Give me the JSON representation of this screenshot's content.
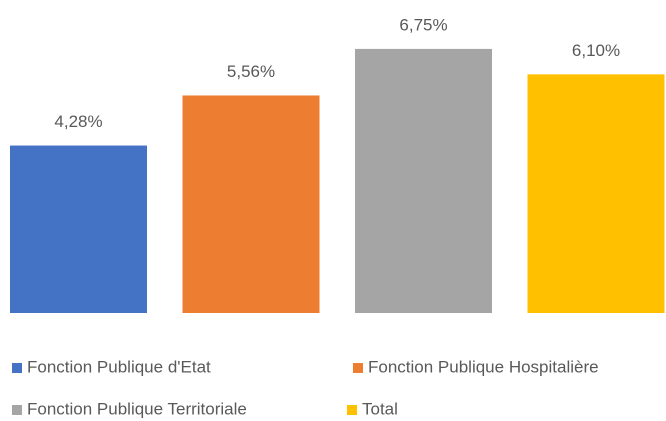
{
  "chart_data": {
    "type": "bar",
    "series": [
      {
        "name": "Fonction Publique d'Etat",
        "color": "#4472c4",
        "values": [
          4.28
        ],
        "value_labels": [
          "4,28%"
        ]
      },
      {
        "name": "Fonction Publique Hospitalière",
        "color": "#ed7d31",
        "values": [
          5.56
        ],
        "value_labels": [
          "5,56%"
        ]
      },
      {
        "name": "Fonction Publique Territoriale",
        "color": "#a5a5a5",
        "values": [
          6.75
        ],
        "value_labels": [
          "6,75%"
        ]
      },
      {
        "name": "Total",
        "color": "#ffc000",
        "values": [
          6.1
        ],
        "value_labels": [
          "6,10%"
        ]
      }
    ],
    "ylim": [
      0,
      8
    ],
    "grid": false,
    "legend": "bottom"
  }
}
